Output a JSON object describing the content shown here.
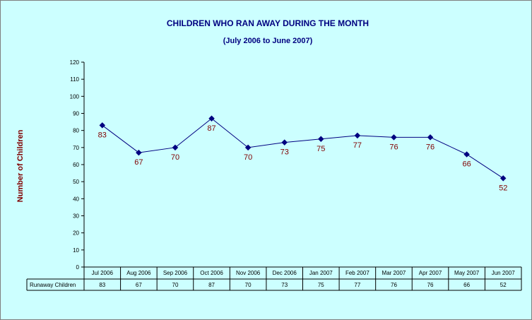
{
  "chart_data": {
    "type": "line",
    "title": "CHILDREN WHO RAN AWAY DURING THE MONTH",
    "subtitle": "(July 2006 to June 2007)",
    "xlabel": "",
    "ylabel": "Number of Children",
    "ylim": [
      0,
      120
    ],
    "ytick_step": 10,
    "grid": false,
    "categories": [
      "Jul 2006",
      "Aug 2006",
      "Sep 2006",
      "Oct 2006",
      "Nov 2006",
      "Dec 2006",
      "Jan 2007",
      "Feb 2007",
      "Mar 2007",
      "Apr 2007",
      "May 2007",
      "Jun 2007"
    ],
    "series": [
      {
        "name": "Runaway Children",
        "values": [
          83,
          67,
          70,
          87,
          70,
          73,
          75,
          77,
          76,
          76,
          66,
          52
        ]
      }
    ],
    "data_table": true,
    "colors": {
      "background": "#ccffff",
      "line": "#000080",
      "marker": "#000080",
      "data_label": "#800000",
      "title": "#000080",
      "axis_title": "#800000"
    }
  }
}
